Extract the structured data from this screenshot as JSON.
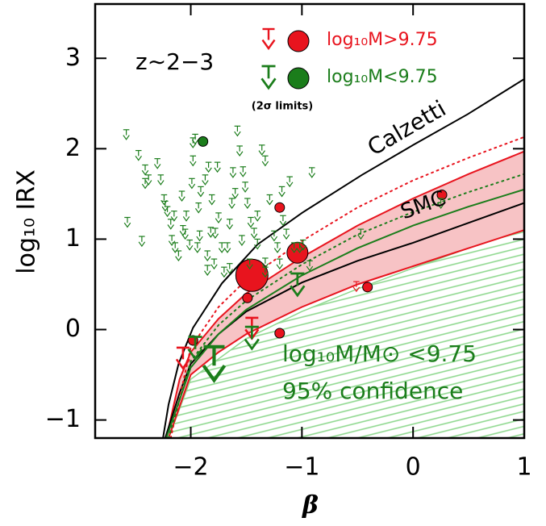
{
  "chart_data": {
    "type": "scatter",
    "xlabel": "β",
    "ylabel": "log₁₀ IRX",
    "xlim": [
      -2.86,
      1
    ],
    "ylim": [
      -1.2,
      3.6
    ],
    "xticks": [
      {
        "value": -2,
        "label": "−2"
      },
      {
        "value": -1,
        "label": "−1"
      },
      0,
      1
    ],
    "yticks": [
      {
        "value": -1,
        "label": "−1"
      },
      0,
      1,
      2,
      3
    ],
    "annotation": "z∼2−3",
    "limits_note": "(2σ limits)",
    "curves": [
      {
        "label": "Calzetti",
        "color": "#000000",
        "style": "solid",
        "x": [
          -2.25,
          -2.2,
          -2.11,
          -1.98,
          -1.72,
          -1.4,
          -1,
          -0.46,
          0,
          0.49,
          1
        ],
        "y": [
          -1.2,
          -0.83,
          -0.38,
          0.02,
          0.51,
          0.94,
          1.29,
          1.71,
          2.04,
          2.38,
          2.77
        ]
      },
      {
        "label": "SMC",
        "color": "#000000",
        "style": "solid",
        "x": [
          -2.23,
          -2.1,
          -2,
          -1.75,
          -1.5,
          -1,
          -0.5,
          0,
          0.5,
          1
        ],
        "y": [
          -1.2,
          -0.7,
          -0.38,
          -0.05,
          0.2,
          0.52,
          0.76,
          0.96,
          1.18,
          1.4
        ]
      },
      {
        "color": "#e8141e",
        "style": "dotted",
        "x": [
          -2.18,
          -2,
          -1.75,
          -1.5,
          -1,
          -0.5,
          0,
          0.5,
          1
        ],
        "y": [
          -1.2,
          -0.2,
          0.25,
          0.55,
          0.98,
          1.35,
          1.65,
          1.9,
          2.13
        ]
      },
      {
        "color": "#1b7d1b",
        "style": "dotted",
        "x": [
          -2.2,
          -2,
          -1.75,
          -1.5,
          -1,
          -0.5,
          0,
          0.5,
          1
        ],
        "y": [
          -1.2,
          -0.35,
          0.05,
          0.32,
          0.72,
          1.05,
          1.3,
          1.52,
          1.72
        ]
      },
      {
        "color": "#1b7d1b",
        "style": "solid",
        "x": [
          -2.22,
          -2,
          -1.75,
          -1.5,
          -1,
          -0.5,
          0,
          0.5,
          1
        ],
        "y": [
          -1.2,
          -0.42,
          -0.05,
          0.22,
          0.6,
          0.9,
          1.15,
          1.36,
          1.55
        ]
      }
    ],
    "band": {
      "color": "#f7c3c5",
      "line_color": "#e8141e",
      "upper": {
        "x": [
          -2.22,
          -2.1,
          -2,
          -1.75,
          -1.5,
          -1,
          -0.5,
          0,
          0.5,
          1
        ],
        "y": [
          -1.2,
          -0.55,
          -0.25,
          0.12,
          0.4,
          0.8,
          1.15,
          1.45,
          1.72,
          1.97
        ]
      },
      "lower": {
        "x": [
          -2.2,
          -2,
          -1.75,
          -1.5,
          -1,
          -0.5,
          0,
          0.5,
          1
        ],
        "y": [
          -1.2,
          -0.5,
          -0.25,
          -0.05,
          0.25,
          0.5,
          0.7,
          0.9,
          1.1
        ]
      }
    },
    "hatch": {
      "color": "#8fd88f",
      "label": "log₁₀M/M⊙ <9.75",
      "sublabel": "95% confidence",
      "x": [
        -2.2,
        -2,
        -1.5,
        -1,
        -0.5,
        0,
        0.5,
        1
      ],
      "y": [
        -1.2,
        -0.55,
        -0.1,
        0.2,
        0.45,
        0.68,
        0.9,
        1.1
      ]
    },
    "series": [
      {
        "name": "log₁₀M>9.75",
        "color": "#e8141e",
        "x": [
          -1.98,
          -1.2,
          -1.49,
          -1.2,
          -0.41,
          0.26
        ],
        "y": [
          -0.12,
          1.35,
          0.35,
          -0.04,
          0.47,
          1.49
        ],
        "limits_x": [
          -0.51
        ],
        "limits_y": [
          0.53
        ],
        "stack_x": [
          -1.45,
          -1.04
        ],
        "stack_y": [
          0.6,
          0.85
        ],
        "stack_limits_x": [
          -2.07,
          -1.45
        ],
        "stack_limits_y": [
          -0.2,
          0.13
        ]
      },
      {
        "name": "log₁₀M<9.75",
        "color": "#1b7d1b",
        "x": [
          -1.89
        ],
        "y": [
          2.08
        ],
        "limits_x": [
          -2.58,
          -2.47,
          -2.57,
          -2.44,
          -2.38,
          -2.41,
          -2.3,
          -2.27,
          -2.23,
          -2.21,
          -2.18,
          -2.17,
          -2.14,
          -2.11,
          -2.05,
          -1.99,
          -1.98,
          -1.96,
          -1.93,
          -1.91,
          -1.87,
          -1.84,
          -1.81,
          -1.79,
          -1.78,
          -1.75,
          -1.72,
          -1.7,
          -1.67,
          -1.65,
          -1.63,
          -1.6,
          -1.58,
          -1.56,
          -1.53,
          -1.51,
          -1.49,
          -1.46,
          -1.43,
          -1.4,
          -1.36,
          -1.33,
          -1.29,
          -1.25,
          -1.22,
          -1.2,
          -1.17,
          -1.14,
          -1.11,
          -1.07,
          -1.02,
          -0.99,
          -0.93,
          -0.91,
          -1.98,
          -2.08,
          -2.04,
          -1.92,
          -1.85,
          -1.76,
          -1.62,
          -1.94,
          -1.47,
          -1.4,
          -1.33,
          -1.82,
          -2.01,
          -2.07,
          -1.85,
          -1.54,
          -2.15,
          -2.24,
          -2.41,
          -1.65,
          -1.18,
          -1.33,
          -0.47,
          0.25
        ],
        "limits_y": [
          2.21,
          1.98,
          1.24,
          1.03,
          1.71,
          1.82,
          1.89,
          1.71,
          1.42,
          1.36,
          1.22,
          1.04,
          0.96,
          0.87,
          1.11,
          1.67,
          1.92,
          2.16,
          1.4,
          1.58,
          1.71,
          1.85,
          1.49,
          0.78,
          1.12,
          1.29,
          0.96,
          0.69,
          0.96,
          1.22,
          1.45,
          1.56,
          2.25,
          2.03,
          1.8,
          1.63,
          1.45,
          1.24,
          1.12,
          1.0,
          2.04,
          1.92,
          1.49,
          1.09,
          0.96,
          0.78,
          1.26,
          1.11,
          1.69,
          0.96,
          0.96,
          0.99,
          0.76,
          1.79,
          2.12,
          1.53,
          1.31,
          1.09,
          0.87,
          1.85,
          1.79,
          0.96,
          0.78,
          1.31,
          0.79,
          1.13,
          0.99,
          1.15,
          0.71,
          1.04,
          1.31,
          1.49,
          1.67,
          0.73,
          1.58,
          0.69,
          1.11,
          1.45
        ],
        "stack_x": [],
        "stack_y": [],
        "stack_limits_x": [
          -1.96,
          -1.79,
          -1.45,
          -1.04
        ],
        "stack_limits_y": [
          -0.08,
          -0.19,
          0.03,
          0.62
        ]
      }
    ]
  }
}
